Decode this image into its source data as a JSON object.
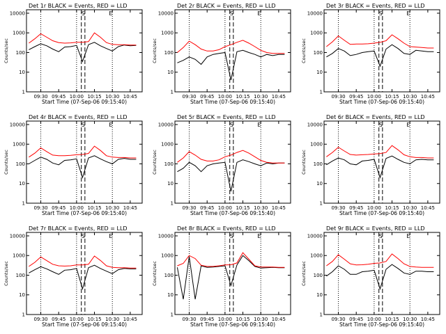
{
  "figure": {
    "xtick_labels": [
      "09:30",
      "09:45",
      "10:00",
      "10:15",
      "10:30",
      "10:45"
    ],
    "ytick_labels": [
      "1",
      "10",
      "100",
      "1000",
      "10000"
    ],
    "ylabel": "Counts/sec",
    "xlabel": "Start Time (07-Sep-06 09:15:40)",
    "marker_S": "S",
    "marker_E": "E",
    "colors": {
      "events": "#000000",
      "lld": "#ff0000",
      "axes": "#000000"
    }
  },
  "chart_data": [
    {
      "type": "line",
      "title": "Det 1r BLACK = Events, RED = LLD",
      "x": [
        "09:20",
        "09:25",
        "09:30",
        "09:35",
        "09:40",
        "09:45",
        "09:50",
        "09:55",
        "10:00",
        "10:05",
        "10:10",
        "10:15",
        "10:20",
        "10:25",
        "10:30",
        "10:35",
        "10:40",
        "10:45",
        "10:50"
      ],
      "ylim": [
        1,
        15000
      ],
      "yscale": "log",
      "series": [
        {
          "name": "Events",
          "values": [
            140,
            200,
            280,
            220,
            150,
            110,
            190,
            200,
            230,
            35,
            250,
            330,
            220,
            160,
            120,
            200,
            240,
            220,
            230
          ]
        },
        {
          "name": "LLD",
          "values": [
            300,
            500,
            900,
            600,
            400,
            320,
            300,
            310,
            330,
            330,
            360,
            1000,
            600,
            320,
            260,
            250,
            250,
            240,
            240
          ]
        }
      ]
    },
    {
      "type": "line",
      "title": "Det 2r BLACK = Events, RED = LLD",
      "x": [
        "09:20",
        "09:25",
        "09:30",
        "09:35",
        "09:40",
        "09:45",
        "09:50",
        "09:55",
        "10:00",
        "10:05",
        "10:10",
        "10:15",
        "10:20",
        "10:25",
        "10:30",
        "10:35",
        "10:40",
        "10:45",
        "10:50"
      ],
      "ylim": [
        1,
        15000
      ],
      "yscale": "log",
      "series": [
        {
          "name": "Events",
          "values": [
            30,
            40,
            60,
            45,
            25,
            60,
            80,
            90,
            100,
            4,
            110,
            130,
            100,
            80,
            60,
            80,
            70,
            80,
            80
          ]
        },
        {
          "name": "LLD",
          "values": [
            100,
            180,
            380,
            250,
            150,
            120,
            120,
            140,
            200,
            250,
            330,
            420,
            300,
            200,
            130,
            100,
            90,
            90,
            90
          ]
        }
      ]
    },
    {
      "type": "line",
      "title": "Det 3r BLACK = Events, RED = LLD",
      "x": [
        "09:20",
        "09:25",
        "09:30",
        "09:35",
        "09:40",
        "09:45",
        "09:50",
        "09:55",
        "10:00",
        "10:05",
        "10:10",
        "10:15",
        "10:20",
        "10:25",
        "10:30",
        "10:35",
        "10:40",
        "10:45",
        "10:50"
      ],
      "ylim": [
        1,
        15000
      ],
      "yscale": "log",
      "series": [
        {
          "name": "Events",
          "values": [
            60,
            90,
            160,
            120,
            70,
            80,
            100,
            110,
            120,
            20,
            150,
            250,
            160,
            90,
            80,
            130,
            120,
            110,
            110
          ]
        },
        {
          "name": "LLD",
          "values": [
            200,
            350,
            700,
            420,
            260,
            270,
            270,
            280,
            300,
            330,
            400,
            800,
            500,
            300,
            200,
            190,
            180,
            170,
            170
          ]
        }
      ]
    },
    {
      "type": "line",
      "title": "Det 4r BLACK = Events, RED = LLD",
      "x": [
        "09:20",
        "09:25",
        "09:30",
        "09:35",
        "09:40",
        "09:45",
        "09:50",
        "09:55",
        "10:00",
        "10:05",
        "10:10",
        "10:15",
        "10:20",
        "10:25",
        "10:30",
        "10:35",
        "10:40",
        "10:45",
        "10:50"
      ],
      "ylim": [
        1,
        15000
      ],
      "yscale": "log",
      "series": [
        {
          "name": "Events",
          "values": [
            100,
            150,
            220,
            170,
            110,
            90,
            150,
            160,
            180,
            20,
            200,
            260,
            180,
            130,
            100,
            170,
            190,
            170,
            170
          ]
        },
        {
          "name": "LLD",
          "values": [
            220,
            350,
            650,
            420,
            280,
            260,
            260,
            270,
            290,
            300,
            340,
            800,
            480,
            260,
            220,
            210,
            210,
            200,
            200
          ]
        }
      ]
    },
    {
      "type": "line",
      "title": "Det 5r BLACK = Events, RED = LLD",
      "x": [
        "09:20",
        "09:25",
        "09:30",
        "09:35",
        "09:40",
        "09:45",
        "09:50",
        "09:55",
        "10:00",
        "10:05",
        "10:10",
        "10:15",
        "10:20",
        "10:25",
        "10:30",
        "10:35",
        "10:40",
        "10:45",
        "10:50"
      ],
      "ylim": [
        1,
        15000
      ],
      "yscale": "log",
      "series": [
        {
          "name": "Events",
          "values": [
            40,
            60,
            120,
            80,
            40,
            80,
            100,
            110,
            120,
            4,
            120,
            160,
            130,
            100,
            80,
            110,
            100,
            110,
            110
          ]
        },
        {
          "name": "LLD",
          "values": [
            120,
            200,
            420,
            280,
            170,
            140,
            140,
            160,
            230,
            280,
            380,
            480,
            350,
            230,
            150,
            120,
            110,
            110,
            110
          ]
        }
      ]
    },
    {
      "type": "line",
      "title": "Det 6r BLACK = Events, RED = LLD",
      "x": [
        "09:20",
        "09:25",
        "09:30",
        "09:35",
        "09:40",
        "09:45",
        "09:50",
        "09:55",
        "10:00",
        "10:05",
        "10:10",
        "10:15",
        "10:20",
        "10:25",
        "10:30",
        "10:35",
        "10:40",
        "10:45",
        "10:50"
      ],
      "ylim": [
        1,
        15000
      ],
      "yscale": "log",
      "series": [
        {
          "name": "Events",
          "values": [
            90,
            140,
            200,
            160,
            100,
            90,
            140,
            150,
            170,
            20,
            190,
            250,
            170,
            120,
            100,
            160,
            170,
            160,
            160
          ]
        },
        {
          "name": "LLD",
          "values": [
            230,
            380,
            700,
            450,
            300,
            280,
            290,
            300,
            320,
            330,
            380,
            850,
            520,
            290,
            230,
            210,
            210,
            200,
            200
          ]
        }
      ]
    },
    {
      "type": "line",
      "title": "Det 7r BLACK = Events, RED = LLD",
      "x": [
        "09:20",
        "09:25",
        "09:30",
        "09:35",
        "09:40",
        "09:45",
        "09:50",
        "09:55",
        "10:00",
        "10:05",
        "10:10",
        "10:15",
        "10:20",
        "10:25",
        "10:30",
        "10:35",
        "10:40",
        "10:45",
        "10:50"
      ],
      "ylim": [
        1,
        15000
      ],
      "yscale": "log",
      "series": [
        {
          "name": "Events",
          "values": [
            130,
            190,
            270,
            210,
            150,
            110,
            180,
            190,
            220,
            20,
            240,
            320,
            220,
            160,
            120,
            190,
            220,
            210,
            210
          ]
        },
        {
          "name": "LLD",
          "values": [
            280,
            450,
            850,
            550,
            360,
            300,
            290,
            300,
            330,
            330,
            360,
            950,
            560,
            300,
            250,
            240,
            240,
            230,
            230
          ]
        }
      ]
    },
    {
      "type": "line",
      "title": "Det 8r BLACK = Events, RED = LLD",
      "x": [
        "09:20",
        "09:25",
        "09:30",
        "09:35",
        "09:40",
        "09:45",
        "09:50",
        "09:55",
        "10:00",
        "10:05",
        "10:10",
        "10:15",
        "10:20",
        "10:25",
        "10:30",
        "10:35",
        "10:40",
        "10:45",
        "10:50"
      ],
      "ylim": [
        1,
        15000
      ],
      "yscale": "log",
      "series": [
        {
          "name": "Events",
          "values": [
            250,
            6,
            900,
            6,
            300,
            250,
            260,
            280,
            300,
            30,
            330,
            1000,
            550,
            280,
            230,
            240,
            250,
            240,
            240
          ]
        },
        {
          "name": "LLD",
          "values": [
            300,
            400,
            1000,
            700,
            320,
            280,
            280,
            300,
            330,
            340,
            420,
            1400,
            650,
            300,
            260,
            260,
            260,
            250,
            250
          ]
        }
      ]
    },
    {
      "type": "line",
      "title": "Det 9r BLACK = Events, RED = LLD",
      "x": [
        "09:20",
        "09:25",
        "09:30",
        "09:35",
        "09:40",
        "09:45",
        "09:50",
        "09:55",
        "10:00",
        "10:05",
        "10:10",
        "10:15",
        "10:20",
        "10:25",
        "10:30",
        "10:35",
        "10:40",
        "10:45",
        "10:50"
      ],
      "ylim": [
        1,
        15000
      ],
      "yscale": "log",
      "series": [
        {
          "name": "Events",
          "values": [
            90,
            150,
            300,
            200,
            110,
            110,
            150,
            160,
            180,
            20,
            200,
            350,
            220,
            130,
            110,
            160,
            160,
            150,
            150
          ]
        },
        {
          "name": "LLD",
          "values": [
            300,
            500,
            1100,
            650,
            380,
            330,
            340,
            360,
            400,
            420,
            500,
            1200,
            700,
            380,
            280,
            260,
            250,
            250,
            250
          ]
        }
      ]
    }
  ]
}
